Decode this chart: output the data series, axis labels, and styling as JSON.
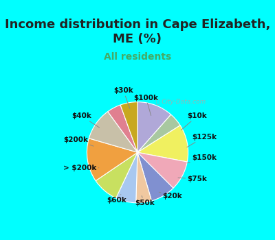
{
  "title": "Income distribution in Cape Elizabeth,\nME (%)",
  "subtitle": "All residents",
  "bg_cyan": "#00FFFF",
  "bg_chart": "#d8ede0",
  "labels": [
    "$100k",
    "$10k",
    "$125k",
    "$150k",
    "$75k",
    "$20k",
    "$50k",
    "$60k",
    "> $200k",
    "$200k",
    "$40k",
    "$30k"
  ],
  "sizes": [
    11.5,
    4.5,
    12.0,
    9.5,
    8.0,
    5.0,
    6.5,
    8.5,
    14.0,
    10.5,
    4.5,
    5.5
  ],
  "colors": [
    "#b0a8d8",
    "#a8c8a0",
    "#f0f060",
    "#f0a8b8",
    "#8090d0",
    "#f0c8a0",
    "#a8c8f0",
    "#c8e060",
    "#f0a040",
    "#c8c0a8",
    "#e08090",
    "#c8a820"
  ],
  "startangle": 90,
  "title_fontsize": 13,
  "subtitle_fontsize": 10,
  "title_color": "#222222",
  "subtitle_color": "#44aa66"
}
